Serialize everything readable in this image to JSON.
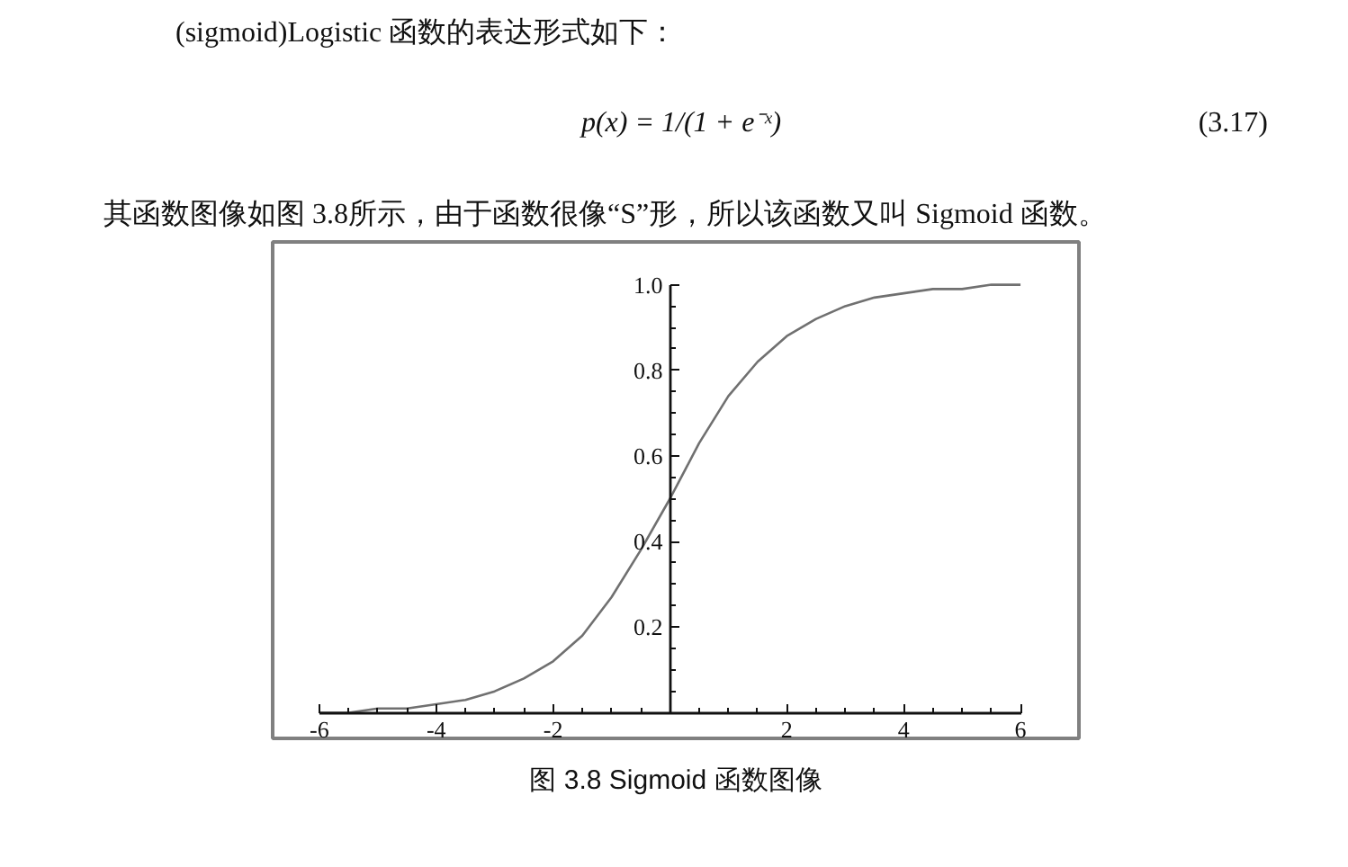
{
  "chart_data": {
    "type": "line",
    "title": "(sigmoid)Logistic 函数的表达形式如下：",
    "subtitle": "其函数图像如图 3.8所示，由于函数很像“S”形，所以该函数又叫 Sigmoid 函数。",
    "annotations": [
      "p(x) = 1/(1 + e⁻ˣ)",
      "(3.17)",
      "图 3.8 Sigmoid 函数图像"
    ],
    "x": [
      -6,
      -5.5,
      -5,
      -4.5,
      -4,
      -3.5,
      -3,
      -2.5,
      -2,
      -1.5,
      -1,
      -0.5,
      0,
      0.5,
      1,
      1.5,
      2,
      2.5,
      3,
      3.5,
      4,
      4.5,
      5,
      5.5,
      6
    ],
    "series": [
      {
        "color": "#707070",
        "values": [
          0.0,
          0.0,
          0.01,
          0.01,
          0.02,
          0.03,
          0.05,
          0.08,
          0.12,
          0.18,
          0.27,
          0.38,
          0.5,
          0.63,
          0.74,
          0.82,
          0.88,
          0.92,
          0.95,
          0.97,
          0.98,
          0.99,
          0.99,
          1.0,
          1.0
        ]
      }
    ],
    "xlim": [
      -6.8,
      7.0
    ],
    "ylim": [
      -0.06,
      1.1
    ],
    "xticks": [
      -6,
      -4,
      -2,
      2,
      4,
      6
    ],
    "yticks": [
      0.2,
      0.4,
      0.6,
      0.8,
      {
        "value": 1,
        "label": "1.0"
      }
    ]
  }
}
